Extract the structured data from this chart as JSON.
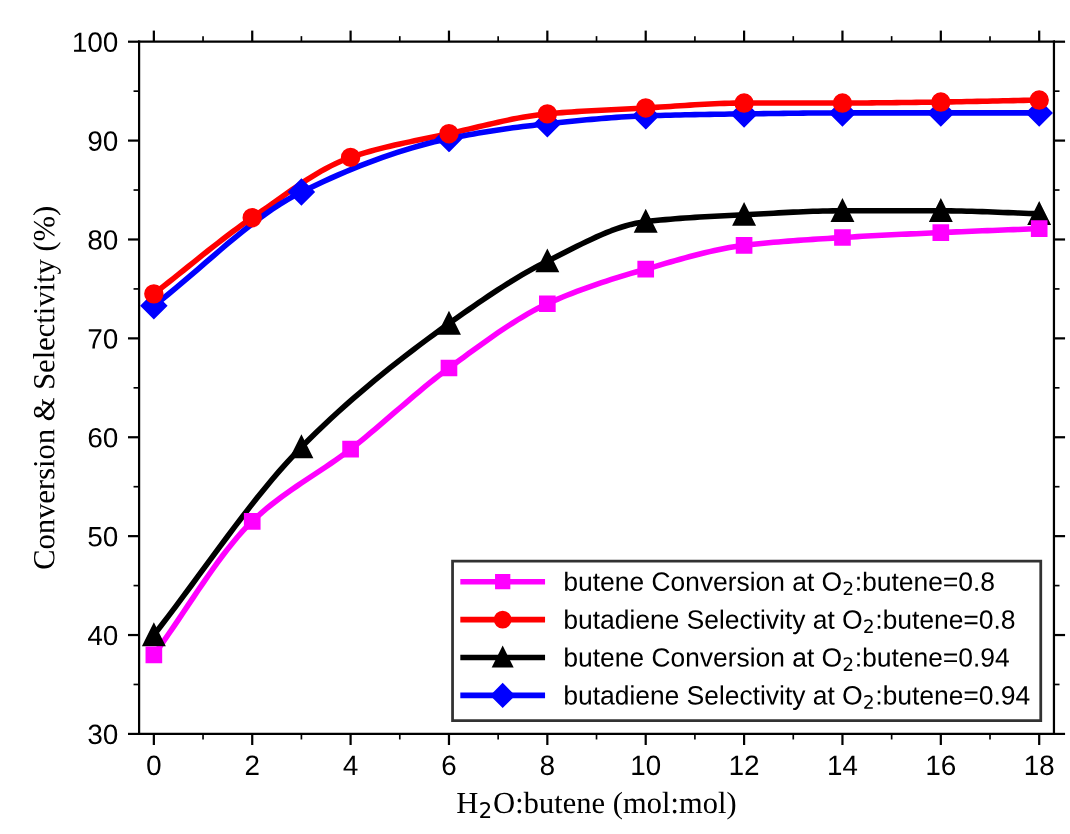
{
  "chart_data": {
    "type": "line",
    "xlabel": "H$_{2}$O:butene (mol:mol)",
    "ylabel": "Conversion & Selectivity (%)",
    "xlim": [
      -0.3,
      18.3
    ],
    "ylim": [
      30,
      100
    ],
    "xticks": [
      0,
      2,
      4,
      6,
      8,
      10,
      12,
      14,
      16,
      18
    ],
    "yticks": [
      30,
      40,
      50,
      60,
      70,
      80,
      90,
      100
    ],
    "grid": false,
    "legend": "bottom right",
    "line_style": "solid",
    "series": [
      {
        "name": "butene Conversion at O$_{2}$:butene=0.8",
        "color": "#ff00ff",
        "marker": "square",
        "x": [
          0,
          2,
          4,
          6,
          8,
          10,
          12,
          14,
          16,
          18
        ],
        "values": [
          38,
          51.5,
          58.8,
          67,
          73.5,
          77,
          79.4,
          80.2,
          80.7,
          81.1
        ]
      },
      {
        "name": "butadiene Selectivity at O$_{2}$:butene=0.8",
        "color": "#ff0000",
        "marker": "circle",
        "x": [
          0,
          2,
          4,
          6,
          8,
          10,
          12,
          14,
          16,
          18
        ],
        "values": [
          74.5,
          82.2,
          88.3,
          90.7,
          92.7,
          93.3,
          93.8,
          93.8,
          93.9,
          94.1
        ]
      },
      {
        "name": "butene Conversion at O$_{2}$:butene=0.94",
        "color": "#000000",
        "marker": "triangle",
        "x": [
          0,
          3,
          6,
          8,
          10,
          12,
          14,
          16,
          18
        ],
        "values": [
          40,
          59,
          71.5,
          77.8,
          81.8,
          82.5,
          82.9,
          82.9,
          82.6
        ]
      },
      {
        "name": "butadiene Selectivity at O$_{2}$:butene=0.94",
        "color": "#0000ff",
        "marker": "diamond",
        "x": [
          0,
          3,
          6,
          8,
          10,
          12,
          14,
          16,
          18
        ],
        "values": [
          73.3,
          84.8,
          90.2,
          91.7,
          92.5,
          92.7,
          92.8,
          92.8,
          92.8
        ]
      }
    ]
  }
}
